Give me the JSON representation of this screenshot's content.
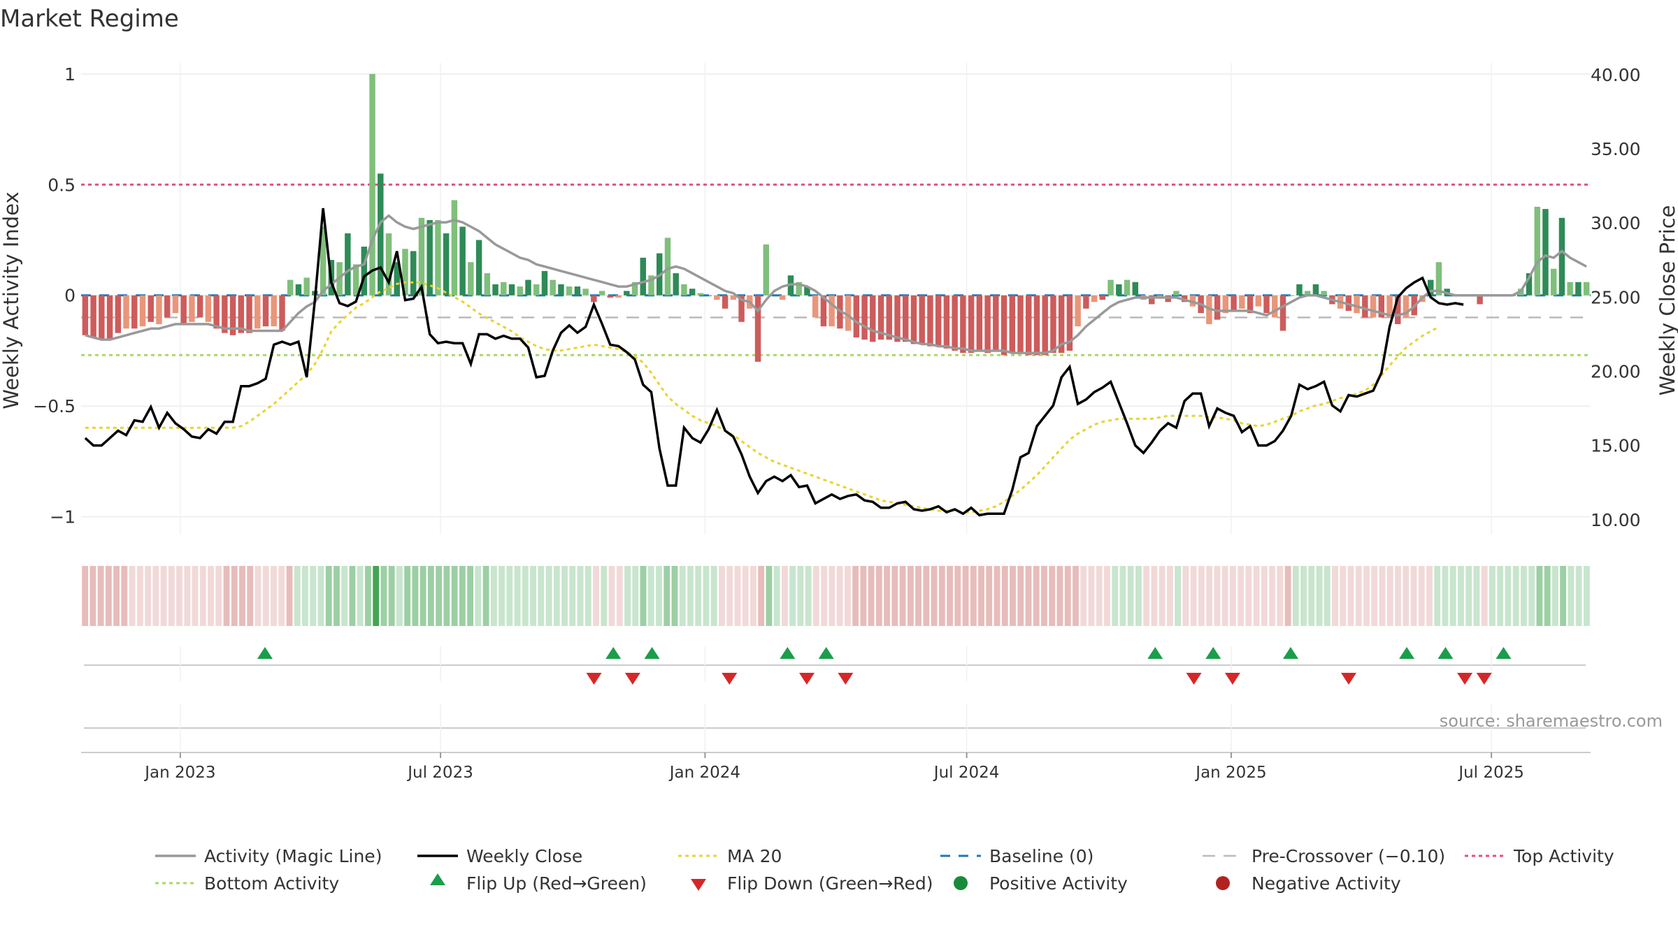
{
  "title": "Market Regime",
  "source": "source: sharemaestro.com",
  "colors": {
    "bar_pos_strong": "#2e8b57",
    "bar_pos_soft": "#7fbf7b",
    "bar_neg_strong": "#cd5c5c",
    "bar_neg_soft": "#e9967a",
    "activity_line": "#999999",
    "close_line": "#000000",
    "ma_line": "#e8d430",
    "baseline": "#1f77b4",
    "pre_crossover": "#bbbbbb",
    "top_activity": "#e0507a",
    "bottom_activity": "#a6d96a",
    "flip_up": "#1a9e4a",
    "flip_down": "#d62728",
    "positive_activity": "#1a8a3a",
    "negative_activity": "#b22222"
  },
  "chart_data": {
    "type": "bar",
    "title": "Market Regime",
    "xlabel": "",
    "ylabel": "Weekly Activity Index",
    "y2label": "Weekly Close Price",
    "ylim": [
      -1.08,
      1.05
    ],
    "y2lim": [
      9.0,
      40.8
    ],
    "yticks": [
      1,
      0.5,
      0,
      -0.5,
      -1
    ],
    "ytick_labels": [
      "1",
      "0.5",
      "0",
      "−0.5",
      "−1"
    ],
    "y2ticks": [
      40,
      35,
      30,
      25,
      20,
      15,
      10
    ],
    "y2tick_labels": [
      "40.00",
      "35.00",
      "30.00",
      "25.00",
      "20.00",
      "15.00",
      "10.00"
    ],
    "x_start": "2022-10-24",
    "x_end": "2025-09-08",
    "xticks": [
      "2023-01-01",
      "2023-07-01",
      "2024-01-01",
      "2024-07-01",
      "2025-01-01",
      "2025-07-01"
    ],
    "xtick_labels": [
      "Jan 2023",
      "Jul 2023",
      "Jan 2024",
      "Jul 2024",
      "Jan 2025",
      "Jul 2025"
    ],
    "reference_lines": {
      "top_activity": 0.5,
      "bottom_activity": -0.27,
      "pre_crossover": -0.1,
      "baseline": 0
    },
    "legend_placement": "bottom",
    "grid": true,
    "activity_index": [
      -0.18,
      -0.19,
      -0.2,
      -0.2,
      -0.17,
      -0.15,
      -0.15,
      -0.14,
      -0.12,
      -0.13,
      -0.1,
      -0.08,
      -0.13,
      -0.12,
      -0.1,
      -0.12,
      -0.15,
      -0.17,
      -0.18,
      -0.17,
      -0.17,
      -0.15,
      -0.14,
      -0.14,
      -0.16,
      0.07,
      0.05,
      0.08,
      0.02,
      0.31,
      0.16,
      0.15,
      0.28,
      0.14,
      0.22,
      1.0,
      0.55,
      0.28,
      0.15,
      0.21,
      0.2,
      0.35,
      0.34,
      0.34,
      0.28,
      0.43,
      0.31,
      0.15,
      0.25,
      0.1,
      0.05,
      0.06,
      0.05,
      0.04,
      0.07,
      0.05,
      0.11,
      0.07,
      0.05,
      0.04,
      0.04,
      0.03,
      -0.03,
      0.02,
      -0.01,
      -0.01,
      0.02,
      0.06,
      0.17,
      0.09,
      0.19,
      0.26,
      0.1,
      0.05,
      0.03,
      0.01,
      0.0,
      -0.02,
      -0.06,
      -0.02,
      -0.12,
      -0.06,
      -0.3,
      0.23,
      0.0,
      -0.02,
      0.09,
      0.06,
      0.04,
      -0.1,
      -0.14,
      -0.14,
      -0.15,
      -0.16,
      -0.19,
      -0.2,
      -0.21,
      -0.2,
      -0.2,
      -0.21,
      -0.21,
      -0.22,
      -0.22,
      -0.23,
      -0.23,
      -0.24,
      -0.25,
      -0.26,
      -0.26,
      -0.25,
      -0.26,
      -0.25,
      -0.27,
      -0.26,
      -0.26,
      -0.27,
      -0.27,
      -0.27,
      -0.26,
      -0.26,
      -0.25,
      -0.14,
      -0.06,
      -0.03,
      -0.02,
      0.07,
      0.05,
      0.07,
      0.06,
      -0.02,
      -0.04,
      -0.01,
      -0.03,
      0.02,
      -0.03,
      -0.05,
      -0.08,
      -0.13,
      -0.11,
      -0.08,
      -0.07,
      -0.06,
      -0.08,
      -0.05,
      -0.08,
      -0.1,
      -0.16,
      0.0,
      0.05,
      0.02,
      0.05,
      0.02,
      -0.04,
      -0.06,
      -0.07,
      -0.08,
      -0.1,
      -0.1,
      -0.1,
      -0.1,
      -0.13,
      -0.1,
      -0.09,
      -0.03,
      0.07,
      0.15,
      0.03,
      0.0,
      0.0,
      0.0,
      -0.04,
      0.0,
      0.0,
      0.0,
      0.0,
      0.03,
      0.1,
      0.4,
      0.39,
      0.12,
      0.35,
      0.06,
      0.06,
      0.06
    ],
    "activity_line": [
      -0.18,
      -0.19,
      -0.2,
      -0.2,
      -0.19,
      -0.18,
      -0.17,
      -0.16,
      -0.15,
      -0.15,
      -0.14,
      -0.13,
      -0.13,
      -0.13,
      -0.13,
      -0.13,
      -0.14,
      -0.15,
      -0.15,
      -0.15,
      -0.16,
      -0.16,
      -0.16,
      -0.16,
      -0.16,
      -0.12,
      -0.08,
      -0.05,
      -0.03,
      0.02,
      0.05,
      0.08,
      0.11,
      0.13,
      0.14,
      0.25,
      0.33,
      0.36,
      0.33,
      0.31,
      0.3,
      0.31,
      0.32,
      0.33,
      0.33,
      0.34,
      0.33,
      0.31,
      0.29,
      0.26,
      0.23,
      0.21,
      0.19,
      0.17,
      0.16,
      0.14,
      0.13,
      0.12,
      0.11,
      0.1,
      0.09,
      0.08,
      0.07,
      0.06,
      0.05,
      0.04,
      0.04,
      0.05,
      0.06,
      0.07,
      0.09,
      0.12,
      0.13,
      0.12,
      0.1,
      0.08,
      0.06,
      0.04,
      0.02,
      0.01,
      -0.02,
      -0.03,
      -0.07,
      -0.02,
      0.02,
      0.04,
      0.05,
      0.05,
      0.04,
      0.02,
      -0.01,
      -0.04,
      -0.07,
      -0.09,
      -0.12,
      -0.14,
      -0.16,
      -0.17,
      -0.18,
      -0.19,
      -0.2,
      -0.21,
      -0.22,
      -0.22,
      -0.23,
      -0.23,
      -0.24,
      -0.24,
      -0.25,
      -0.25,
      -0.25,
      -0.25,
      -0.25,
      -0.26,
      -0.26,
      -0.26,
      -0.26,
      -0.26,
      -0.25,
      -0.22,
      -0.21,
      -0.18,
      -0.14,
      -0.11,
      -0.08,
      -0.05,
      -0.03,
      -0.02,
      -0.01,
      -0.01,
      -0.01,
      -0.01,
      -0.01,
      -0.01,
      -0.02,
      -0.03,
      -0.04,
      -0.06,
      -0.07,
      -0.07,
      -0.07,
      -0.07,
      -0.07,
      -0.08,
      -0.09,
      -0.07,
      -0.05,
      -0.03,
      -0.01,
      0.0,
      0.0,
      -0.01,
      -0.02,
      -0.03,
      -0.04,
      -0.05,
      -0.06,
      -0.07,
      -0.08,
      -0.09,
      -0.09,
      -0.08,
      -0.05,
      -0.01,
      0.02,
      0.02,
      0.01,
      0.0,
      0.0,
      0.0,
      0.0,
      0.0,
      0.0,
      0.0,
      0.0,
      0.02,
      0.08,
      0.15,
      0.18,
      0.17,
      0.2,
      0.17,
      0.15,
      0.13
    ],
    "weekly_close": [
      15.5,
      15.0,
      15.0,
      15.5,
      16.0,
      15.7,
      16.7,
      16.6,
      17.6,
      16.2,
      17.2,
      16.5,
      16.1,
      15.6,
      15.5,
      16.1,
      15.8,
      16.6,
      16.6,
      19.0,
      19.0,
      19.2,
      19.5,
      21.8,
      22.0,
      21.8,
      22.0,
      19.6,
      24.8,
      31.0,
      26.0,
      24.6,
      24.4,
      24.7,
      26.4,
      26.8,
      27.0,
      26.0,
      28.1,
      24.8,
      24.9,
      25.7,
      22.5,
      21.9,
      22.0,
      21.9,
      21.9,
      20.5,
      22.5,
      22.5,
      22.2,
      22.4,
      22.2,
      22.2,
      21.6,
      19.6,
      19.7,
      21.4,
      22.6,
      23.1,
      22.6,
      23.0,
      24.5,
      23.2,
      21.8,
      21.7,
      21.3,
      20.8,
      19.1,
      18.6,
      14.8,
      12.3,
      12.3,
      16.2,
      15.5,
      15.2,
      16.1,
      17.4,
      16.0,
      15.6,
      14.4,
      12.9,
      11.8,
      12.6,
      12.9,
      12.6,
      13.0,
      12.2,
      12.3,
      11.1,
      11.4,
      11.7,
      11.4,
      11.6,
      11.7,
      11.3,
      11.2,
      10.8,
      10.8,
      11.1,
      11.2,
      10.7,
      10.6,
      10.7,
      10.9,
      10.5,
      10.7,
      10.4,
      10.8,
      10.3,
      10.4,
      10.4,
      10.4,
      12.0,
      14.2,
      14.5,
      16.3,
      17.0,
      17.7,
      19.6,
      20.3,
      17.8,
      18.1,
      18.6,
      18.9,
      19.3,
      17.9,
      16.5,
      15.0,
      14.5,
      15.2,
      16.0,
      16.5,
      16.2,
      18.0,
      18.5,
      18.5,
      16.3,
      17.5,
      17.2,
      17.0,
      15.9,
      16.3,
      15.0,
      15.0,
      15.3,
      16.0,
      17.0,
      19.1,
      18.8,
      19.0,
      19.3,
      17.7,
      17.3,
      18.4,
      18.3,
      18.5,
      18.7,
      19.9,
      23.0,
      25.0,
      25.6,
      26.0,
      26.3,
      25.0,
      24.6,
      24.5,
      24.6,
      24.5
    ],
    "ma20": [
      16.2,
      16.2,
      16.2,
      16.2,
      16.2,
      16.2,
      16.2,
      16.2,
      16.2,
      16.2,
      16.2,
      16.2,
      16.2,
      16.2,
      16.2,
      16.2,
      16.2,
      16.2,
      16.2,
      16.3,
      16.6,
      17.0,
      17.4,
      17.8,
      18.3,
      18.8,
      19.3,
      19.8,
      20.5,
      21.5,
      22.7,
      23.3,
      23.8,
      24.3,
      24.6,
      25.0,
      25.4,
      25.6,
      25.9,
      26.0,
      26.0,
      26.0,
      25.8,
      25.6,
      25.3,
      25.0,
      24.7,
      24.3,
      23.9,
      23.6,
      23.3,
      23.0,
      22.7,
      22.3,
      22.0,
      21.7,
      21.5,
      21.4,
      21.4,
      21.5,
      21.6,
      21.7,
      21.8,
      21.7,
      21.6,
      21.5,
      21.3,
      21.0,
      20.6,
      19.9,
      19.1,
      18.3,
      17.8,
      17.4,
      17.0,
      16.7,
      16.5,
      16.3,
      16.0,
      15.7,
      15.3,
      14.9,
      14.5,
      14.2,
      13.9,
      13.7,
      13.5,
      13.3,
      13.1,
      12.9,
      12.7,
      12.5,
      12.3,
      12.1,
      11.9,
      11.7,
      11.5,
      11.3,
      11.2,
      11.1,
      11.0,
      10.9,
      10.8,
      10.7,
      10.6,
      10.6,
      10.6,
      10.5,
      10.5,
      10.6,
      10.7,
      10.9,
      11.2,
      11.6,
      12.0,
      12.5,
      13.0,
      13.6,
      14.2,
      14.8,
      15.4,
      15.8,
      16.1,
      16.4,
      16.6,
      16.7,
      16.8,
      16.8,
      16.8,
      16.8,
      16.8,
      16.9,
      17.0,
      17.0,
      17.0,
      17.0,
      17.0,
      16.9,
      16.9,
      16.8,
      16.7,
      16.5,
      16.4,
      16.3,
      16.4,
      16.6,
      16.8,
      17.0,
      17.3,
      17.5,
      17.7,
      17.8,
      18.0,
      18.2,
      18.3,
      18.5,
      18.7,
      19.1,
      19.7,
      20.4,
      21.0,
      21.6,
      22.0,
      22.4,
      22.7,
      23.0
    ],
    "flip_up_weeks": [
      9,
      27,
      29,
      36,
      38,
      55,
      58,
      62,
      68,
      70,
      73
    ],
    "flip_down_weeks": [
      26,
      28,
      33,
      37,
      39,
      57,
      59,
      65,
      71,
      72
    ],
    "heat_weeks": 192,
    "series": [
      {
        "name": "Activity (Magic Line)"
      },
      {
        "name": "Weekly Close"
      },
      {
        "name": "MA 20"
      },
      {
        "name": "Baseline (0)"
      },
      {
        "name": "Pre-Crossover (−0.10)"
      },
      {
        "name": "Top Activity"
      },
      {
        "name": "Bottom Activity"
      },
      {
        "name": "Flip Up (Red→Green)"
      },
      {
        "name": "Flip Down (Green→Red)"
      },
      {
        "name": "Positive Activity"
      },
      {
        "name": "Negative Activity"
      }
    ]
  }
}
